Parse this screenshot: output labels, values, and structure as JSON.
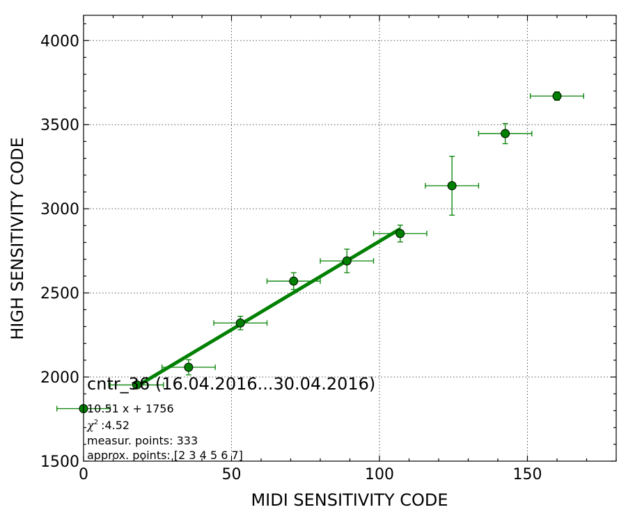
{
  "chart_data": {
    "type": "scatter",
    "xlabel": "MIDI SENSITIVITY CODE",
    "ylabel": "HIGH SENSITIVITY CODE",
    "xlim": [
      0,
      180
    ],
    "ylim": [
      1500,
      4150
    ],
    "xticks": [
      0,
      50,
      100,
      150
    ],
    "yticks": [
      1500,
      2000,
      2500,
      3000,
      3500,
      4000
    ],
    "grid": true,
    "points": [
      {
        "x": 0,
        "y": 1812,
        "xerr": 9,
        "yerr": 20
      },
      {
        "x": 18,
        "y": 1953,
        "xerr": 9,
        "yerr": 15
      },
      {
        "x": 35.5,
        "y": 2058,
        "xerr": 9,
        "yerr": 45
      },
      {
        "x": 53,
        "y": 2321,
        "xerr": 9,
        "yerr": 40
      },
      {
        "x": 71,
        "y": 2570,
        "xerr": 9,
        "yerr": 50
      },
      {
        "x": 89,
        "y": 2690,
        "xerr": 9,
        "yerr": 70
      },
      {
        "x": 107,
        "y": 2853,
        "xerr": 9,
        "yerr": 50
      },
      {
        "x": 124.5,
        "y": 3137,
        "xerr": 9,
        "yerr": 175
      },
      {
        "x": 142.5,
        "y": 3447,
        "xerr": 9,
        "yerr": 60
      },
      {
        "x": 160,
        "y": 3670,
        "xerr": 9,
        "yerr": 25
      }
    ],
    "fit": {
      "slope": 10.51,
      "intercept": 1756,
      "x_range": [
        18,
        107
      ]
    },
    "annotations": {
      "title": "cntr_36 (16.04.2016...30.04.2016)",
      "equation": "10.51 x + 1756",
      "chi2": ":4.52",
      "measured": "measur. points: 333",
      "approx": "approx. points: [2 3 4 5 6 7]"
    },
    "colors": {
      "series": "#008000",
      "edge": "#000000"
    }
  }
}
